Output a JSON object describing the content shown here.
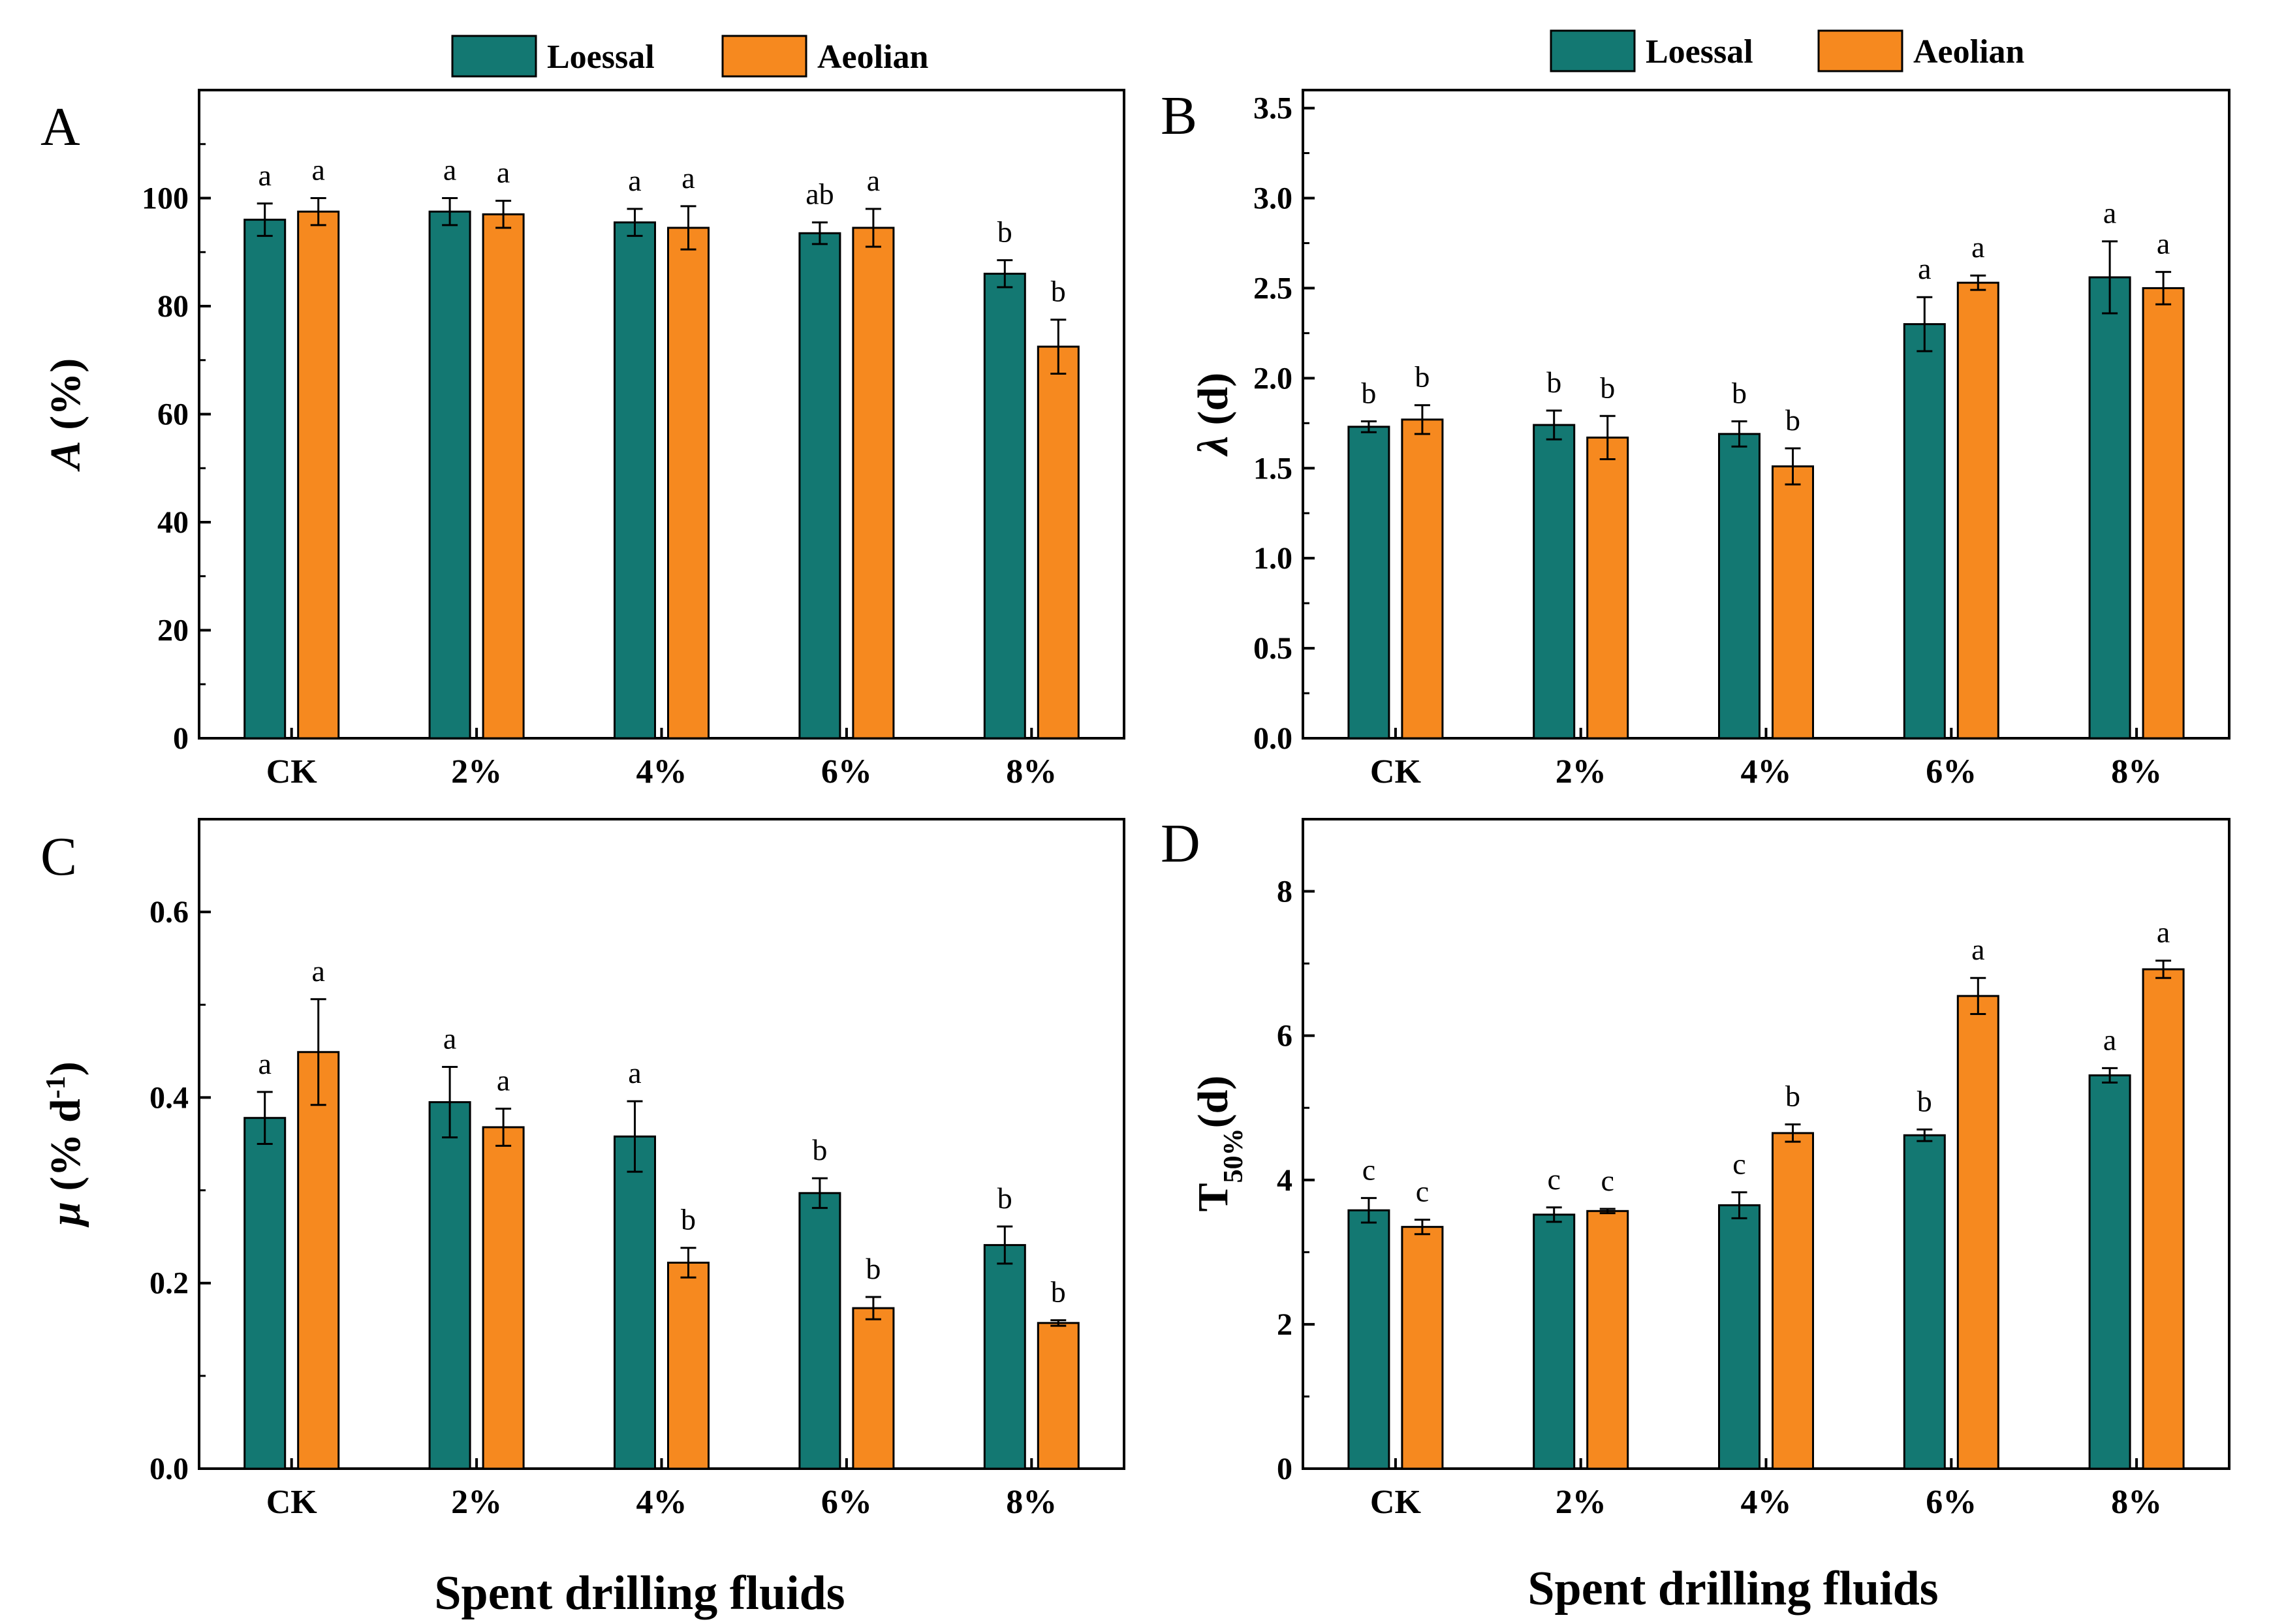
{
  "colors": {
    "loessal": "#137872",
    "aeolian": "#F6891F",
    "axis": "#000000"
  },
  "legend": {
    "items": [
      "Loessal",
      "Aeolian"
    ]
  },
  "xlabel": "Spent drilling fluids",
  "chart_data": [
    {
      "type": "bar",
      "panel": "A",
      "ylabel_main": "A",
      "ylabel_rest": " (%)",
      "ylabel_sub": "",
      "ylabel_sup": "",
      "categories": [
        "CK",
        "2%",
        "4%",
        "6%",
        "8%"
      ],
      "ylim": [
        0,
        120
      ],
      "yticks": [
        0,
        20,
        40,
        60,
        80,
        100
      ],
      "ytick_labels": [
        "0",
        "20",
        "40",
        "60",
        "80",
        "100"
      ],
      "series": [
        {
          "name": "Loessal",
          "values": [
            96,
            97.5,
            95.5,
            93.5,
            86
          ],
          "errors": [
            3,
            2.5,
            2.5,
            2,
            2.5
          ],
          "sig": [
            "a",
            "a",
            "a",
            "ab",
            "b"
          ]
        },
        {
          "name": "Aeolian",
          "values": [
            97.5,
            97,
            94.5,
            94.5,
            72.5
          ],
          "errors": [
            2.5,
            2.5,
            4,
            3.5,
            5
          ],
          "sig": [
            "a",
            "a",
            "a",
            "a",
            "b"
          ]
        }
      ]
    },
    {
      "type": "bar",
      "panel": "B",
      "ylabel_main": "λ",
      "ylabel_rest": " (d)",
      "ylabel_sub": "",
      "ylabel_sup": "",
      "categories": [
        "CK",
        "2%",
        "4%",
        "6%",
        "8%"
      ],
      "ylim": [
        0,
        3.6
      ],
      "yticks": [
        0,
        0.5,
        1.0,
        1.5,
        2.0,
        2.5,
        3.0,
        3.5
      ],
      "ytick_labels": [
        "0.0",
        "0.5",
        "1.0",
        "1.5",
        "2.0",
        "2.5",
        "3.0",
        "3.5"
      ],
      "series": [
        {
          "name": "Loessal",
          "values": [
            1.73,
            1.74,
            1.69,
            2.3,
            2.56
          ],
          "errors": [
            0.03,
            0.08,
            0.07,
            0.15,
            0.2
          ],
          "sig": [
            "b",
            "b",
            "b",
            "a",
            "a"
          ]
        },
        {
          "name": "Aeolian",
          "values": [
            1.77,
            1.67,
            1.51,
            2.53,
            2.5
          ],
          "errors": [
            0.08,
            0.12,
            0.1,
            0.04,
            0.09
          ],
          "sig": [
            "b",
            "b",
            "b",
            "a",
            "a"
          ]
        }
      ]
    },
    {
      "type": "bar",
      "panel": "C",
      "ylabel_main": "μ",
      "ylabel_rest": " (% d",
      "ylabel_sub": "",
      "ylabel_sup": "-1",
      "ylabel_end": ")",
      "categories": [
        "CK",
        "2%",
        "4%",
        "6%",
        "8%"
      ],
      "ylim": [
        0,
        0.7
      ],
      "yticks": [
        0,
        0.2,
        0.4,
        0.6
      ],
      "ytick_labels": [
        "0.0",
        "0.2",
        "0.4",
        "0.6"
      ],
      "series": [
        {
          "name": "Loessal",
          "values": [
            0.378,
            0.395,
            0.358,
            0.297,
            0.241
          ],
          "errors": [
            0.028,
            0.038,
            0.038,
            0.016,
            0.02
          ],
          "sig": [
            "a",
            "a",
            "a",
            "b",
            "b"
          ]
        },
        {
          "name": "Aeolian",
          "values": [
            0.449,
            0.368,
            0.222,
            0.173,
            0.157
          ],
          "errors": [
            0.057,
            0.02,
            0.016,
            0.012,
            0.003
          ],
          "sig": [
            "a",
            "a",
            "b",
            "b",
            "b"
          ]
        }
      ]
    },
    {
      "type": "bar",
      "panel": "D",
      "ylabel_main": "T",
      "ylabel_rest": "(d)",
      "ylabel_sub": "50%",
      "ylabel_sup": "",
      "categories": [
        "CK",
        "2%",
        "4%",
        "6%",
        "8%"
      ],
      "ylim": [
        0,
        9
      ],
      "yticks": [
        0,
        2,
        4,
        6,
        8
      ],
      "ytick_labels": [
        "0",
        "2",
        "4",
        "6",
        "8"
      ],
      "series": [
        {
          "name": "Loessal",
          "values": [
            3.58,
            3.52,
            3.65,
            4.62,
            5.45
          ],
          "errors": [
            0.17,
            0.1,
            0.18,
            0.08,
            0.1
          ],
          "sig": [
            "c",
            "c",
            "c",
            "b",
            "a"
          ]
        },
        {
          "name": "Aeolian",
          "values": [
            3.35,
            3.57,
            4.65,
            6.55,
            6.92
          ],
          "errors": [
            0.1,
            0.03,
            0.12,
            0.25,
            0.12
          ],
          "sig": [
            "c",
            "c",
            "b",
            "a",
            "a"
          ]
        }
      ]
    }
  ]
}
